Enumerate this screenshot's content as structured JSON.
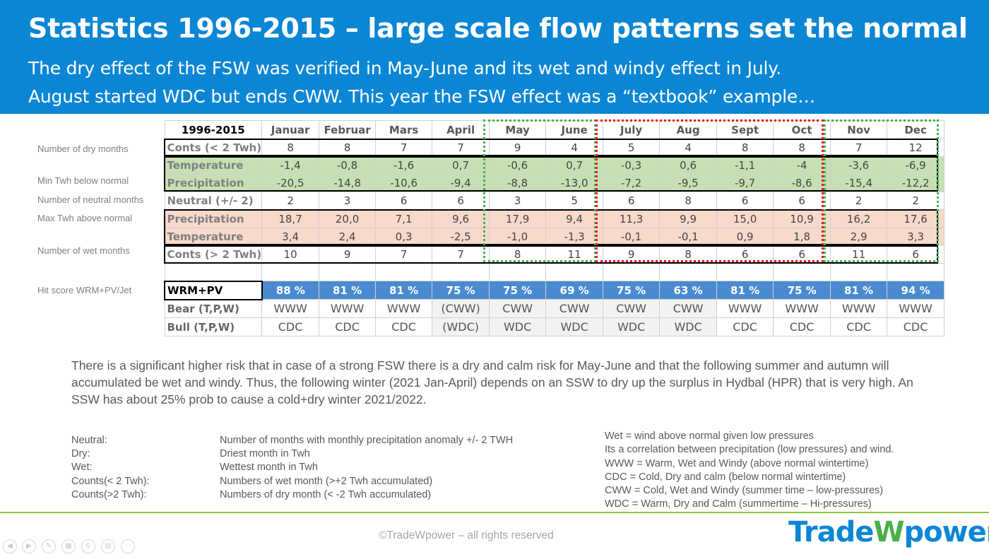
{
  "header": {
    "title": "Statistics 1996-2015 – large scale flow patterns set the normal",
    "subtitle_line1": "The dry effect of the FSW was verified in May-June and its wet and windy effect in July.",
    "subtitle_line2": "August started WDC but ends CWW. This year the FSW effect was a “textbook” example…"
  },
  "row_labels": {
    "dry_months": "Number of dry months",
    "min_twh": "Min Twh below normal",
    "neutral_months": "Number of neutral months",
    "max_twh": "Max Twh above normal",
    "wet_months": "Number of wet months",
    "hit_score": "Hit score WRM+PV/Jet"
  },
  "table": {
    "corner": "1996-2015",
    "months": [
      "Januar",
      "Februar",
      "Mars",
      "April",
      "May",
      "June",
      "July",
      "Aug",
      "Sept",
      "Oct",
      "Nov",
      "Dec"
    ],
    "rows": [
      {
        "label": "Conts (< 2 Twh)",
        "values": [
          "8",
          "8",
          "7",
          "7",
          "9",
          "4",
          "5",
          "4",
          "8",
          "8",
          "7",
          "12"
        ]
      },
      {
        "label": "Temperature",
        "values": [
          "-1,4",
          "-0,8",
          "-1,6",
          "0,7",
          "-0,6",
          "0,7",
          "-0,3",
          "0,6",
          "-1,1",
          "-4",
          "-3,6",
          "-6,9"
        ]
      },
      {
        "label": "Precipitation",
        "values": [
          "-20,5",
          "-14,8",
          "-10,6",
          "-9,4",
          "-8,8",
          "-13,0",
          "-7,2",
          "-9,5",
          "-9,7",
          "-8,6",
          "-15,4",
          "-12,2"
        ]
      },
      {
        "label": "Neutral (+/- 2)",
        "values": [
          "2",
          "3",
          "6",
          "6",
          "3",
          "5",
          "6",
          "8",
          "6",
          "6",
          "2",
          "2"
        ]
      },
      {
        "label": "Precipitation",
        "values": [
          "18,7",
          "20,0",
          "7,1",
          "9,6",
          "17,9",
          "9,4",
          "11,3",
          "9,9",
          "15,0",
          "10,9",
          "16,2",
          "17,6"
        ]
      },
      {
        "label": "Temperature",
        "values": [
          "3,4",
          "2,4",
          "0,3",
          "-2,5",
          "-1,0",
          "-1,3",
          "-0,1",
          "-0,1",
          "0,9",
          "1,8",
          "2,9",
          "3,3"
        ]
      },
      {
        "label": "Conts (> 2 Twh)",
        "values": [
          "10",
          "9",
          "7",
          "7",
          "8",
          "11",
          "9",
          "8",
          "6",
          "6",
          "11",
          "6"
        ]
      }
    ],
    "hit_label": "WRM+PV",
    "hit_values": [
      "88 %",
      "81 %",
      "81 %",
      "75 %",
      "75 %",
      "69 %",
      "75 %",
      "63 %",
      "81 %",
      "75 %",
      "81 %",
      "94 %"
    ],
    "bear_label": "Bear (T,P,W)",
    "bear_values": [
      "WWW",
      "WWW",
      "WWW",
      "(CWW)",
      "CWW",
      "CWW",
      "CWW",
      "CWW",
      "WWW",
      "WWW",
      "WWW",
      "WWW"
    ],
    "bull_label": "Bull (T,P,W)",
    "bull_values": [
      "CDC",
      "CDC",
      "CDC",
      "(WDC)",
      "WDC",
      "WDC",
      "WDC",
      "WDC",
      "CDC",
      "CDC",
      "CDC",
      "CDC"
    ]
  },
  "colors": {
    "header_blue": "#0a86d4",
    "green_cell": "#c6e0b4",
    "pink_cell": "#f8d9cb",
    "hit_blue": "#4a8bd0",
    "box_green": "#4ab04a",
    "box_red": "#e8151b",
    "footer_green": "#8dc63f"
  },
  "paragraph": "There is a significant higher risk that in case of a strong FSW there is a dry and calm risk for May-June and that the following summer and autumn will accumulated be wet and windy. Thus, the following winter (2021 Jan-April) depends on an SSW to dry up the surplus in Hydbal (HPR) that is very high. An SSW has about 25% prob to cause a cold+dry winter 2021/2022.",
  "legend_left": [
    {
      "term": "Neutral:",
      "desc": "Number of months with monthly precipitation anomaly +/- 2 TWH"
    },
    {
      "term": "Dry:",
      "desc": "Driest month in Twh"
    },
    {
      "term": "Wet:",
      "desc": "Wettest month in Twh"
    },
    {
      "term": "Counts(< 2 Twh):",
      "desc": "Numbers of wet month (>+2 Twh accumulated)"
    },
    {
      "term": "Counts(>2 Twh):",
      "desc": "Numbers of dry month  (< -2 Twh accumulated)"
    }
  ],
  "legend_right": [
    "Wet = wind above normal given low pressures",
    "Its  a correlation between precipitation (low pressures) and wind.",
    "WWW = Warm, Wet and Windy (above normal wintertime)",
    "CDC = Cold, Dry and calm (below normal wintertime)",
    "CWW = Cold, Wet and Windy (summer time – low-pressures)",
    "WDC = Warm, Dry and Calm (summertime – Hi-pressures)"
  ],
  "footer": {
    "copyright": "©TradeWpower – all rights reserved",
    "logo_part1": "Trade",
    "logo_part2": "W",
    "logo_part3": "power"
  },
  "controls": [
    "prev-icon",
    "next-icon",
    "pen-icon",
    "slides-icon",
    "zoom-icon",
    "subtitles-icon",
    "more-icon"
  ]
}
